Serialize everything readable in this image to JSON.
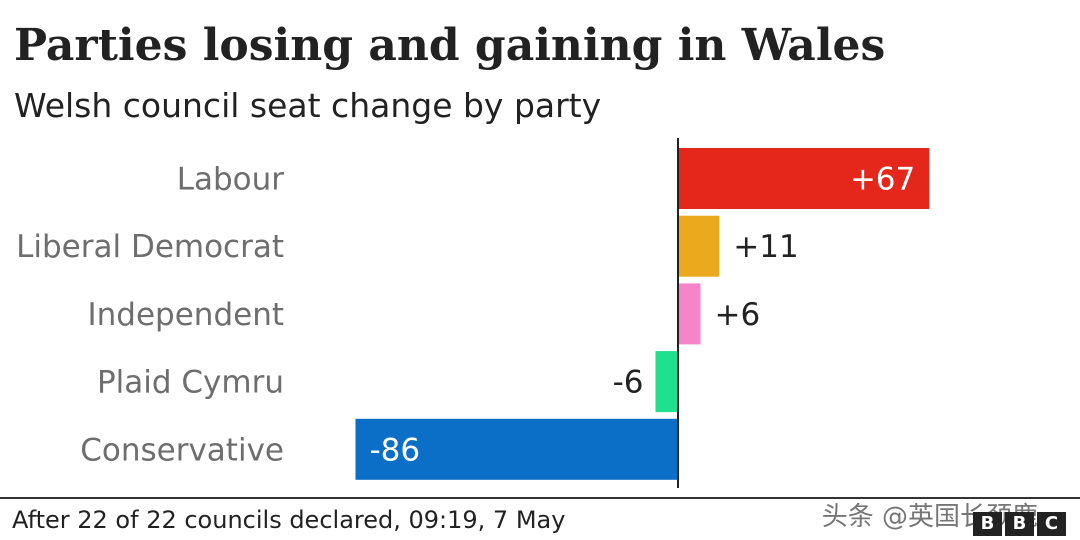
{
  "header": {
    "title": "Parties losing and gaining in Wales",
    "subtitle": "Welsh council seat change by party"
  },
  "chart_data": {
    "type": "bar",
    "orientation": "horizontal",
    "title": "Parties losing and gaining in Wales",
    "subtitle": "Welsh council seat change by party",
    "xlabel": "",
    "ylabel": "",
    "xlim": [
      -86,
      67
    ],
    "grid": false,
    "categories": [
      "Labour",
      "Liberal Democrat",
      "Independent",
      "Plaid Cymru",
      "Conservative"
    ],
    "values": [
      67,
      11,
      6,
      -6,
      -86
    ],
    "value_labels": [
      "+67",
      "+11",
      "+6",
      "-6",
      "-86"
    ],
    "colors": [
      "#e4261b",
      "#eba91e",
      "#f584c9",
      "#1fe08e",
      "#0b6fc7"
    ]
  },
  "footer": {
    "note": "After 22 of 22 councils declared, 09:19, 7 May",
    "watermark": "头条 @英国长颈鹿",
    "logo": [
      "B",
      "B",
      "C"
    ]
  }
}
